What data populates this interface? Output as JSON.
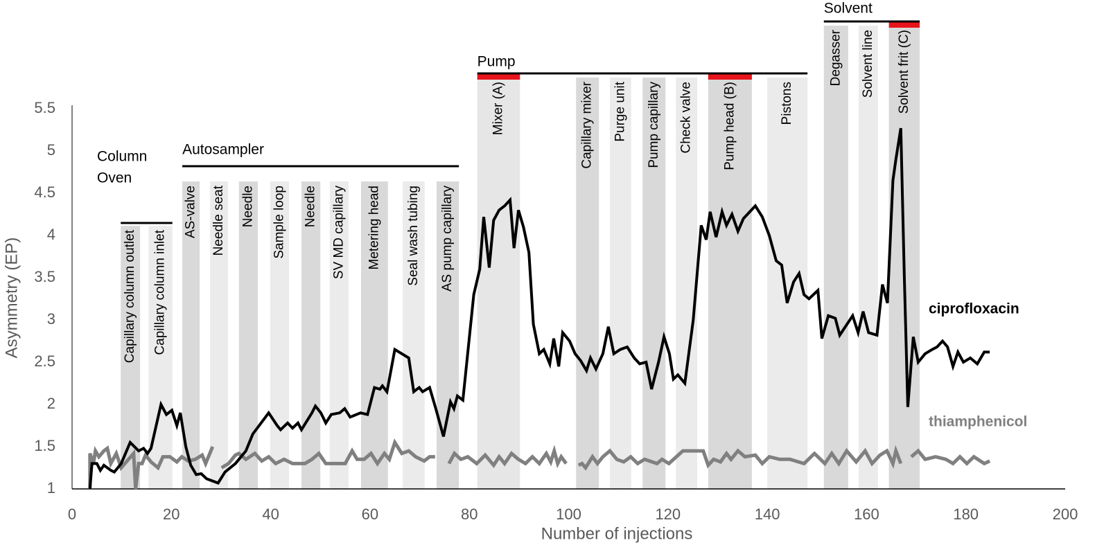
{
  "chart_data": {
    "type": "line",
    "xlabel": "Number  of injections",
    "ylabel": "Asymmetry (EP)",
    "xlim": [
      0,
      200
    ],
    "ylim": [
      1,
      5.5
    ],
    "xticks": [
      0,
      20,
      40,
      60,
      80,
      100,
      120,
      140,
      160,
      180,
      200
    ],
    "yticks": [
      1,
      1.5,
      2,
      2.5,
      3,
      3.5,
      4,
      4.5,
      5,
      5.5
    ],
    "grid": false,
    "highlight_color": "#e8141b",
    "groups": [
      {
        "label": [
          "Column",
          "Oven"
        ],
        "bands": [
          {
            "label": "Capillary column outlet",
            "x0": 9.8,
            "x1": 13.7,
            "color": "#d9d9d9"
          },
          {
            "label": "Capillary column inlet",
            "x0": 15.4,
            "x1": 20.2,
            "color": "#ebebeb"
          }
        ]
      },
      {
        "label": [
          "Autosampler"
        ],
        "bands": [
          {
            "label": "AS-valve",
            "x0": 22.2,
            "x1": 25.7,
            "color": "#d9d9d9"
          },
          {
            "label": "Needle seat",
            "x0": 27.8,
            "x1": 31.4,
            "color": "#ebebeb"
          },
          {
            "label": "Needle",
            "x0": 33.6,
            "x1": 37.4,
            "color": "#d9d9d9"
          },
          {
            "label": "Sample loop",
            "x0": 39.9,
            "x1": 43.7,
            "color": "#ebebeb"
          },
          {
            "label": "Needle",
            "x0": 46.2,
            "x1": 50.0,
            "color": "#d9d9d9"
          },
          {
            "label": "SV MD capillary",
            "x0": 51.9,
            "x1": 55.7,
            "color": "#ebebeb"
          },
          {
            "label": "Metering head",
            "x0": 58.2,
            "x1": 63.6,
            "color": "#d9d9d9"
          },
          {
            "label": "Seal wash tubing",
            "x0": 66.6,
            "x1": 71.0,
            "color": "#ebebeb"
          },
          {
            "label": "AS pump capillary",
            "x0": 73.4,
            "x1": 77.9,
            "color": "#d9d9d9"
          }
        ]
      },
      {
        "label": [
          "Pump"
        ],
        "bands": [
          {
            "label": "Mixer (A)",
            "x0": 81.6,
            "x1": 90.2,
            "color": "#e6e6e6",
            "highlight": true
          },
          {
            "label": "Capillary mixer",
            "x0": 101.5,
            "x1": 106.1,
            "color": "#d9d9d9"
          },
          {
            "label": "Purge unit",
            "x0": 108.3,
            "x1": 112.6,
            "color": "#ebebeb"
          },
          {
            "label": "Pump capillary",
            "x0": 114.9,
            "x1": 119.5,
            "color": "#d9d9d9"
          },
          {
            "label": "Check valve",
            "x0": 121.6,
            "x1": 125.9,
            "color": "#ebebeb"
          },
          {
            "label": "Pump head (B)",
            "x0": 128.1,
            "x1": 136.9,
            "color": "#d9d9d9",
            "highlight": true
          },
          {
            "label": "Pistons",
            "x0": 140.0,
            "x1": 148.1,
            "color": "#ebebeb"
          }
        ]
      },
      {
        "label": [
          "Solvent"
        ],
        "bands": [
          {
            "label": "Degasser",
            "x0": 151.4,
            "x1": 156.3,
            "color": "#d9d9d9"
          },
          {
            "label": "Solvent line",
            "x0": 158.4,
            "x1": 162.3,
            "color": "#ebebeb"
          },
          {
            "label": "Solvent frit (C)",
            "x0": 164.5,
            "x1": 170.7,
            "color": "#d9d9d9",
            "highlight": true
          }
        ]
      }
    ],
    "series": [
      {
        "name": "ciprofloxacin",
        "color": "#000000",
        "x": [
          3.6,
          4.0,
          5.0,
          5.7,
          6.4,
          7.8,
          8.5,
          9.9,
          11.7,
          13.4,
          14.4,
          15.2,
          15.9,
          17.9,
          19.0,
          20.1,
          21.1,
          21.8,
          22.9,
          23.9,
          25.0,
          26.0,
          27.1,
          29.4,
          30.8,
          32.9,
          35.0,
          36.4,
          39.6,
          41.3,
          42.0,
          43.4,
          44.4,
          45.5,
          46.2,
          48.3,
          49.0,
          50.1,
          51.1,
          52.2,
          53.9,
          54.9,
          56.0,
          58.1,
          59.5,
          60.9,
          62.0,
          62.5,
          63.4,
          63.9,
          65.0,
          66.4,
          67.8,
          68.8,
          69.9,
          70.6,
          72.0,
          73.4,
          74.8,
          76.2,
          76.9,
          77.6,
          78.7,
          80.9,
          82.1,
          82.9,
          84.0,
          84.9,
          86.0,
          87.1,
          88.2,
          89.0,
          89.9,
          90.9,
          92.0,
          92.9,
          94.1,
          95.0,
          96.2,
          97.0,
          98.0,
          98.8,
          100.2,
          101.3,
          102.4,
          103.6,
          104.4,
          105.5,
          106.9,
          108.0,
          109.1,
          110.4,
          111.8,
          113.2,
          114.3,
          115.6,
          116.7,
          118.1,
          119.2,
          120.3,
          121.1,
          122.0,
          123.4,
          125.1,
          126.7,
          127.7,
          128.5,
          129.7,
          130.9,
          131.8,
          132.9,
          134.1,
          135.2,
          137.6,
          139.0,
          140.4,
          141.8,
          142.9,
          144.0,
          145.3,
          146.4,
          147.4,
          148.4,
          150.2,
          151.0,
          152.3,
          153.7,
          154.6,
          157.2,
          158.3,
          159.3,
          160.4,
          162.1,
          163.2,
          164.2,
          165.3,
          165.9,
          166.9,
          167.6,
          168.3,
          169.4,
          170.4,
          171.8,
          173.2,
          174.2,
          175.3,
          176.3,
          177.4,
          178.4,
          179.5,
          180.9,
          182.3,
          183.7,
          184.8
        ],
        "values": [
          1.0,
          1.3,
          1.3,
          1.22,
          1.28,
          1.22,
          1.2,
          1.3,
          1.55,
          1.45,
          1.48,
          1.42,
          1.48,
          2.0,
          1.88,
          1.93,
          1.75,
          1.9,
          1.5,
          1.28,
          1.17,
          1.18,
          1.12,
          1.07,
          1.2,
          1.3,
          1.45,
          1.65,
          1.9,
          1.75,
          1.7,
          1.78,
          1.72,
          1.78,
          1.7,
          1.9,
          1.98,
          1.9,
          1.78,
          1.88,
          1.9,
          1.95,
          1.85,
          1.9,
          1.88,
          2.2,
          2.18,
          2.22,
          2.15,
          2.3,
          2.65,
          2.6,
          2.55,
          2.15,
          2.2,
          2.15,
          2.2,
          1.92,
          1.62,
          2.03,
          1.95,
          2.1,
          2.05,
          3.3,
          3.6,
          4.22,
          3.62,
          4.18,
          4.3,
          4.35,
          4.42,
          3.85,
          4.3,
          4.1,
          3.8,
          2.95,
          2.6,
          2.65,
          2.48,
          2.78,
          2.45,
          2.85,
          2.75,
          2.6,
          2.52,
          2.4,
          2.55,
          2.42,
          2.6,
          2.92,
          2.6,
          2.65,
          2.68,
          2.55,
          2.48,
          2.5,
          2.18,
          2.5,
          2.8,
          2.6,
          2.3,
          2.35,
          2.25,
          3.0,
          4.12,
          3.95,
          4.28,
          3.98,
          4.28,
          4.12,
          4.25,
          4.05,
          4.2,
          4.35,
          4.22,
          4.0,
          3.7,
          3.65,
          3.2,
          3.45,
          3.55,
          3.3,
          3.25,
          3.35,
          2.78,
          3.05,
          3.02,
          2.82,
          3.05,
          2.85,
          3.1,
          2.85,
          2.82,
          3.42,
          3.2,
          4.65,
          4.9,
          5.27,
          3.5,
          1.97,
          2.8,
          2.5,
          2.6,
          2.65,
          2.68,
          2.75,
          2.68,
          2.45,
          2.62,
          2.5,
          2.55,
          2.48,
          2.62,
          2.62
        ]
      },
      {
        "name": "thiamphenicol",
        "color": "#808080",
        "x": [
          3.6,
          3.6,
          4.3,
          4.7,
          5.4,
          6.4,
          7.1,
          7.8,
          8.9,
          9.9,
          12.4,
          12.8,
          13.4,
          14.1,
          14.8,
          15.9,
          17.3,
          18.3,
          19.7,
          21.1,
          22.1,
          23.4,
          24.8,
          26.2,
          26.9,
          28.3,
          29.0,
          30.1,
          31.5,
          32.9,
          33.6,
          35.0,
          36.8,
          38.2,
          39.6,
          41.0,
          42.7,
          44.4,
          46.9,
          48.3,
          49.7,
          51.1,
          52.5,
          55.0,
          56.4,
          57.4,
          58.8,
          60.2,
          61.5,
          62.9,
          63.9,
          65.0,
          66.4,
          67.8,
          69.2,
          70.9,
          72.0,
          73.1,
          74.5,
          75.9,
          77.0,
          78.3,
          79.7,
          81.5,
          83.2,
          84.9,
          86.0,
          87.1,
          88.5,
          89.9,
          91.3,
          92.7,
          94.1,
          95.5,
          96.4,
          97.1,
          97.8,
          98.5,
          99.5,
          101.0,
          102.0,
          102.7,
          103.4,
          104.8,
          105.8,
          106.9,
          108.3,
          109.7,
          111.1,
          112.5,
          113.9,
          115.3,
          117.8,
          118.8,
          120.2,
          123.0,
          127.1,
          128.1,
          129.2,
          130.6,
          131.8,
          132.7,
          134.1,
          135.5,
          137.6,
          139.0,
          140.4,
          142.5,
          144.6,
          147.4,
          149.5,
          151.6,
          153.0,
          154.4,
          156.0,
          157.9,
          159.7,
          161.1,
          162.7,
          164.1,
          165.3,
          165.9,
          166.9,
          167.5,
          169.0,
          170.4,
          171.8,
          173.9,
          176.0,
          177.4,
          178.8,
          180.2,
          181.6,
          183.7,
          184.8
        ],
        "values": [
          1.0,
          1.42,
          1.3,
          1.45,
          1.38,
          1.45,
          1.48,
          1.3,
          1.42,
          1.25,
          1.42,
          1.0,
          1.3,
          1.3,
          1.4,
          1.32,
          1.25,
          1.38,
          1.38,
          1.32,
          1.38,
          1.33,
          1.35,
          1.4,
          1.3,
          1.5,
          null,
          1.25,
          1.3,
          1.4,
          1.42,
          1.35,
          1.42,
          1.33,
          1.38,
          1.3,
          1.35,
          1.3,
          1.3,
          1.35,
          1.42,
          1.3,
          1.3,
          1.3,
          1.45,
          1.35,
          1.35,
          1.42,
          1.3,
          1.42,
          1.35,
          1.55,
          1.42,
          1.45,
          1.38,
          1.33,
          1.38,
          1.38,
          null,
          1.3,
          1.42,
          1.35,
          1.38,
          1.3,
          1.4,
          1.28,
          1.38,
          1.3,
          1.42,
          1.35,
          1.3,
          1.38,
          1.3,
          1.42,
          1.32,
          1.45,
          1.3,
          1.38,
          1.3,
          null,
          1.28,
          1.3,
          1.25,
          1.38,
          1.3,
          1.38,
          1.45,
          1.35,
          1.32,
          1.38,
          1.3,
          1.35,
          1.3,
          1.35,
          1.3,
          1.45,
          1.45,
          1.28,
          1.35,
          1.32,
          1.42,
          1.35,
          1.45,
          1.38,
          1.4,
          1.3,
          1.38,
          1.35,
          1.35,
          1.3,
          1.42,
          1.3,
          1.42,
          1.3,
          1.45,
          1.32,
          1.45,
          1.3,
          1.4,
          1.45,
          1.3,
          1.45,
          1.3,
          null,
          1.38,
          1.45,
          1.35,
          1.38,
          1.35,
          1.3,
          1.38,
          1.3,
          1.38,
          1.3,
          1.33
        ]
      }
    ]
  }
}
